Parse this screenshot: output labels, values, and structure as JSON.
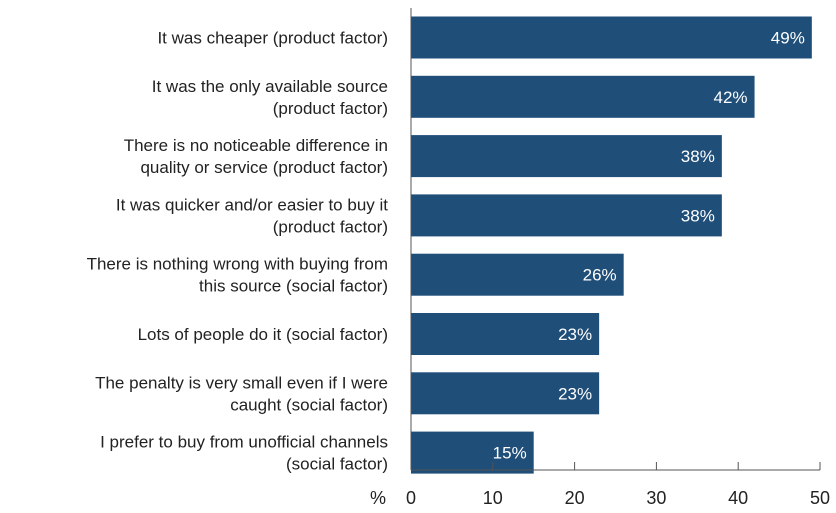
{
  "chart_data": {
    "type": "bar",
    "orientation": "horizontal",
    "categories": [
      [
        "It was cheaper (product factor)"
      ],
      [
        "It was the only available source",
        "(product factor)"
      ],
      [
        "There is no noticeable difference in",
        "quality or service (product factor)"
      ],
      [
        "It was quicker and/or easier to buy it",
        "(product factor)"
      ],
      [
        "There is nothing wrong with buying from",
        "this source (social factor)"
      ],
      [
        "Lots of people do it (social factor)"
      ],
      [
        "The penalty is very small even if I were",
        "caught (social factor)"
      ],
      [
        "I prefer to buy from unofficial channels",
        "(social factor)"
      ]
    ],
    "values": [
      49,
      42,
      38,
      38,
      26,
      23,
      23,
      15
    ],
    "data_labels": [
      "49%",
      "42%",
      "38%",
      "38%",
      "26%",
      "23%",
      "23%",
      "15%"
    ],
    "xlabel": "%",
    "xlim": [
      0,
      50
    ],
    "xticks": [
      0,
      10,
      20,
      30,
      40,
      50
    ],
    "grid": false,
    "bar_color": "#1f4e79"
  }
}
